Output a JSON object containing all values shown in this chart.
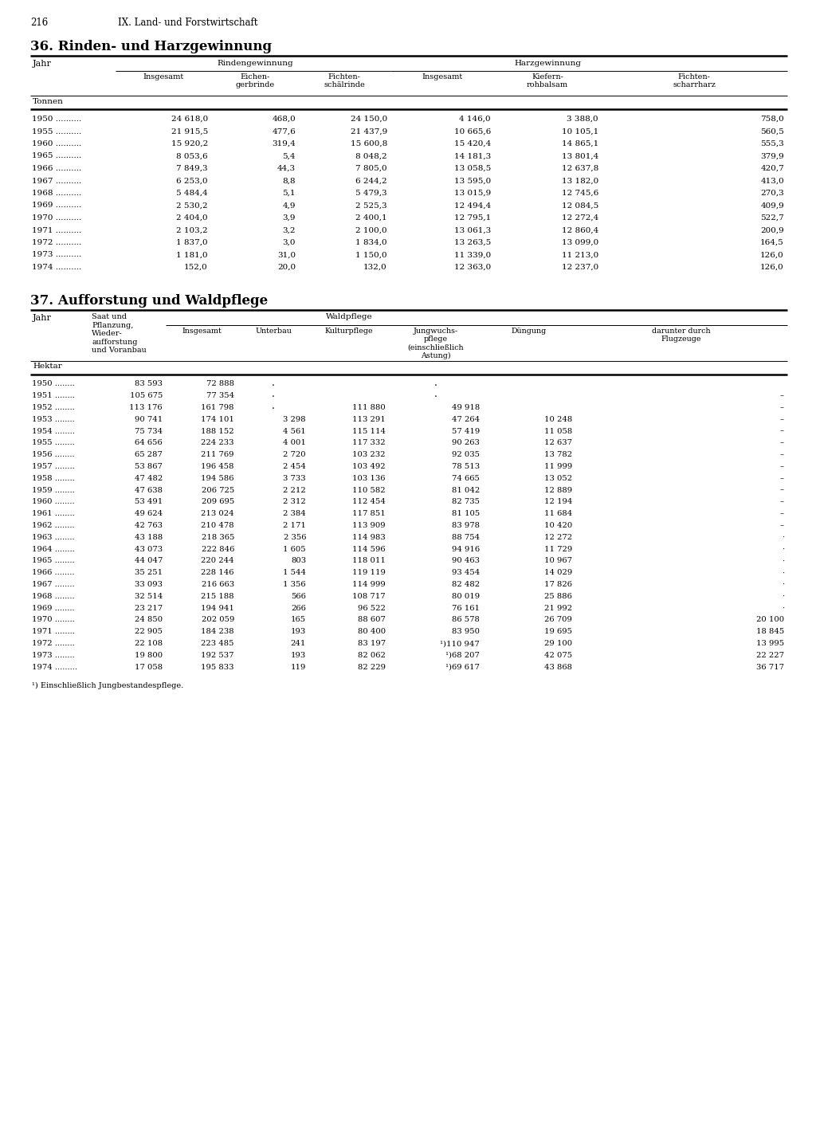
{
  "page_number": "216",
  "chapter": "IX. Land- und Forstwirtschaft",
  "table1_title": "36. Rinden- und Harzgewinnung",
  "table1_unit": "Tonnen",
  "table1_data": [
    [
      "1950",
      "24 618,0",
      "468,0",
      "24 150,0",
      "4 146,0",
      "3 388,0",
      "758,0"
    ],
    [
      "1955",
      "21 915,5",
      "477,6",
      "21 437,9",
      "10 665,6",
      "10 105,1",
      "560,5"
    ],
    [
      "1960",
      "15 920,2",
      "319,4",
      "15 600,8",
      "15 420,4",
      "14 865,1",
      "555,3"
    ],
    [
      "1965",
      "8 053,6",
      "5,4",
      "8 048,2",
      "14 181,3",
      "13 801,4",
      "379,9"
    ],
    [
      "1966",
      "7 849,3",
      "44,3",
      "7 805,0",
      "13 058,5",
      "12 637,8",
      "420,7"
    ],
    [
      "1967",
      "6 253,0",
      "8,8",
      "6 244,2",
      "13 595,0",
      "13 182,0",
      "413,0"
    ],
    [
      "1968",
      "5 484,4",
      "5,1",
      "5 479,3",
      "13 015,9",
      "12 745,6",
      "270,3"
    ],
    [
      "1969",
      "2 530,2",
      "4,9",
      "2 525,3",
      "12 494,4",
      "12 084,5",
      "409,9"
    ],
    [
      "1970",
      "2 404,0",
      "3,9",
      "2 400,1",
      "12 795,1",
      "12 272,4",
      "522,7"
    ],
    [
      "1971",
      "2 103,2",
      "3,2",
      "2 100,0",
      "13 061,3",
      "12 860,4",
      "200,9"
    ],
    [
      "1972",
      "1 837,0",
      "3,0",
      "1 834,0",
      "13 263,5",
      "13 099,0",
      "164,5"
    ],
    [
      "1973",
      "1 181,0",
      "31,0",
      "1 150,0",
      "11 339,0",
      "11 213,0",
      "126,0"
    ],
    [
      "1974",
      "152,0",
      "20,0",
      "132,0",
      "12 363,0",
      "12 237,0",
      "126,0"
    ]
  ],
  "table2_title": "37. Aufforstung und Waldpflege",
  "table2_unit": "Hektar",
  "table2_data": [
    [
      "1950",
      "83 593",
      "72 888",
      "",
      "",
      "",
      "",
      ""
    ],
    [
      "1951",
      "105 675",
      "77 354",
      "",
      "",
      "",
      "",
      "–"
    ],
    [
      "1952",
      "113 176",
      "161 798",
      "",
      "111 880",
      "49 918",
      "",
      "–"
    ],
    [
      "1953",
      "90 741",
      "174 101",
      "3 298",
      "113 291",
      "47 264",
      "10 248",
      "–"
    ],
    [
      "1954",
      "75 734",
      "188 152",
      "4 561",
      "115 114",
      "57 419",
      "11 058",
      "–"
    ],
    [
      "1955",
      "64 656",
      "224 233",
      "4 001",
      "117 332",
      "90 263",
      "12 637",
      "–"
    ],
    [
      "1956",
      "65 287",
      "211 769",
      "2 720",
      "103 232",
      "92 035",
      "13 782",
      "–"
    ],
    [
      "1957",
      "53 867",
      "196 458",
      "2 454",
      "103 492",
      "78 513",
      "11 999",
      "–"
    ],
    [
      "1958",
      "47 482",
      "194 586",
      "3 733",
      "103 136",
      "74 665",
      "13 052",
      "–"
    ],
    [
      "1959",
      "47 638",
      "206 725",
      "2 212",
      "110 582",
      "81 042",
      "12 889",
      "–"
    ],
    [
      "1960",
      "53 491",
      "209 695",
      "2 312",
      "112 454",
      "82 735",
      "12 194",
      "–"
    ],
    [
      "1961",
      "49 624",
      "213 024",
      "2 384",
      "117 851",
      "81 105",
      "11 684",
      "–"
    ],
    [
      "1962",
      "42 763",
      "210 478",
      "2 171",
      "113 909",
      "83 978",
      "10 420",
      "–"
    ],
    [
      "1963",
      "43 188",
      "218 365",
      "2 356",
      "114 983",
      "88 754",
      "12 272",
      "·"
    ],
    [
      "1964",
      "43 073",
      "222 846",
      "1 605",
      "114 596",
      "94 916",
      "11 729",
      "·"
    ],
    [
      "1965",
      "44 047",
      "220 244",
      "803",
      "118 011",
      "90 463",
      "10 967",
      "·"
    ],
    [
      "1966",
      "35 251",
      "228 146",
      "1 544",
      "119 119",
      "93 454",
      "14 029",
      "·"
    ],
    [
      "1967",
      "33 093",
      "216 663",
      "1 356",
      "114 999",
      "82 482",
      "17 826",
      "·"
    ],
    [
      "1968",
      "32 514",
      "215 188",
      "566",
      "108 717",
      "80 019",
      "25 886",
      "·"
    ],
    [
      "1969",
      "23 217",
      "194 941",
      "266",
      "96 522",
      "76 161",
      "21 992",
      "·"
    ],
    [
      "1970",
      "24 850",
      "202 059",
      "165",
      "88 607",
      "86 578",
      "26 709",
      "20 100"
    ],
    [
      "1971",
      "22 905",
      "184 238",
      "193",
      "80 400",
      "83 950",
      "19 695",
      "18 845"
    ],
    [
      "1972",
      "22 108",
      "223 485",
      "241",
      "83 197",
      "¹)110 947",
      "29 100",
      "13 995"
    ],
    [
      "1973",
      "19 800",
      "192 537",
      "193",
      "82 062",
      "¹)68 207",
      "42 075",
      "22 227"
    ],
    [
      "1974",
      "17 058",
      "195 833",
      "119",
      "82 229",
      "¹)69 617",
      "43 868",
      "36 717"
    ]
  ],
  "footnote": "¹) Einschließlich Jungbestandespflege.",
  "t1_dots1": " ..........",
  "t2_dots1": " ........",
  "t2_dots2": " .......",
  "t2_dots3": " .......",
  "background": "#ffffff"
}
